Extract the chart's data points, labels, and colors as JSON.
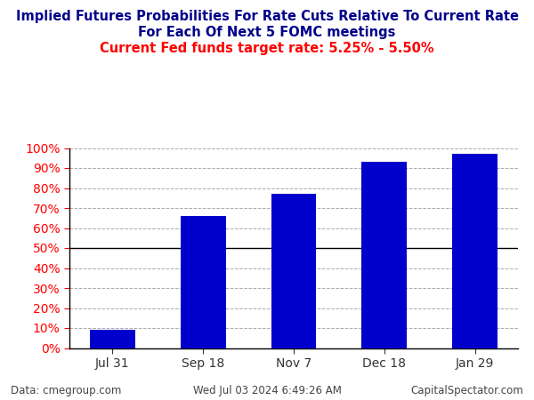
{
  "title_line1": "Implied Futures Probabilities For Rate Cuts Relative To Current Rate",
  "title_line2": "For Each Of Next 5 FOMC meetings",
  "subtitle": "Current Fed funds target rate: 5.25% - 5.50%",
  "categories": [
    "Jul 31",
    "Sep 18",
    "Nov 7",
    "Dec 18",
    "Jan 29"
  ],
  "values": [
    9,
    66,
    77,
    93,
    97
  ],
  "bar_color": "#0000CC",
  "title_color": "#00008B",
  "subtitle_color": "#FF0000",
  "ytick_color": "#FF0000",
  "xtick_color": "#333333",
  "footer_left": "Data: cmegroup.com",
  "footer_center": "Wed Jul 03 2024 6:49:26 AM",
  "footer_right": "CapitalSpectator.com",
  "footer_color": "#444444",
  "ylim": [
    0,
    100
  ],
  "yticks": [
    0,
    10,
    20,
    30,
    40,
    50,
    60,
    70,
    80,
    90,
    100
  ],
  "hline_50_color": "#000000",
  "grid_color": "#AAAAAA",
  "bg_color": "#FFFFFF",
  "title_fontsize": 10.5,
  "subtitle_fontsize": 10.5,
  "tick_fontsize": 10,
  "footer_fontsize": 8.5,
  "bar_width": 0.5
}
